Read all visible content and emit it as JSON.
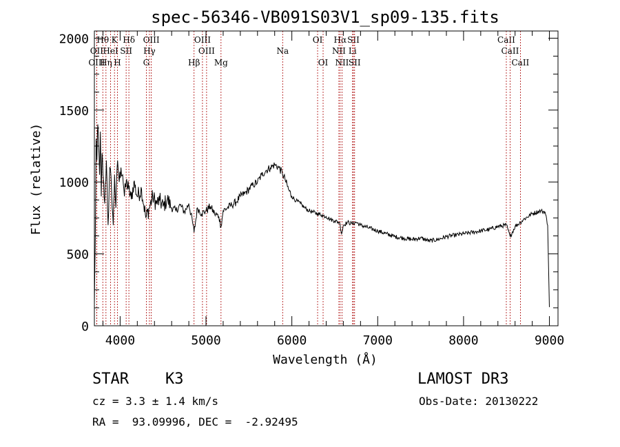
{
  "chart_data": {
    "type": "line",
    "title": "spec-56346-VB091S03V1_sp09-135.fits",
    "xlabel": "Wavelength (Å)",
    "ylabel": "Flux (relative)",
    "xlim": [
      3700,
      9100
    ],
    "ylim": [
      0,
      2050
    ],
    "x_ticks": [
      4000,
      5000,
      6000,
      7000,
      8000,
      9000
    ],
    "y_ticks": [
      0,
      500,
      1000,
      1500,
      2000
    ],
    "grid": false,
    "series": [
      {
        "name": "spectrum",
        "x": [
          3700,
          3710,
          3720,
          3730,
          3740,
          3750,
          3760,
          3770,
          3780,
          3790,
          3800,
          3820,
          3840,
          3860,
          3880,
          3900,
          3920,
          3935,
          3950,
          3970,
          3990,
          4010,
          4030,
          4050,
          4070,
          4100,
          4130,
          4160,
          4200,
          4250,
          4300,
          4340,
          4380,
          4420,
          4460,
          4500,
          4550,
          4600,
          4650,
          4700,
          4750,
          4800,
          4850,
          4861,
          4900,
          4950,
          5000,
          5050,
          5100,
          5150,
          5175,
          5200,
          5250,
          5300,
          5350,
          5400,
          5450,
          5500,
          5550,
          5600,
          5650,
          5700,
          5750,
          5800,
          5850,
          5890,
          5920,
          5960,
          6000,
          6050,
          6100,
          6150,
          6200,
          6250,
          6300,
          6350,
          6400,
          6450,
          6500,
          6550,
          6563,
          6580,
          6600,
          6650,
          6700,
          6750,
          6800,
          6900,
          7000,
          7100,
          7200,
          7300,
          7400,
          7500,
          7600,
          7700,
          7800,
          7900,
          8000,
          8100,
          8200,
          8300,
          8400,
          8500,
          8542,
          8600,
          8662,
          8700,
          8800,
          8900,
          8950,
          8980,
          9000
        ],
        "y": [
          150,
          550,
          1300,
          1150,
          1400,
          1250,
          1050,
          1350,
          900,
          1200,
          1050,
          850,
          1150,
          700,
          1100,
          950,
          700,
          1050,
          820,
          1150,
          1000,
          1100,
          1050,
          900,
          1000,
          950,
          880,
          1000,
          900,
          950,
          750,
          820,
          900,
          850,
          870,
          830,
          880,
          820,
          800,
          840,
          790,
          850,
          700,
          650,
          820,
          780,
          800,
          830,
          780,
          760,
          690,
          800,
          820,
          840,
          860,
          900,
          920,
          950,
          980,
          1000,
          1050,
          1080,
          1100,
          1120,
          1100,
          1060,
          1020,
          950,
          900,
          870,
          850,
          820,
          800,
          790,
          780,
          770,
          760,
          740,
          730,
          720,
          700,
          640,
          700,
          720,
          710,
          720,
          700,
          680,
          660,
          640,
          620,
          610,
          600,
          610,
          590,
          600,
          620,
          630,
          640,
          650,
          660,
          670,
          690,
          700,
          620,
          690,
          720,
          740,
          780,
          800,
          790,
          700,
          130
        ]
      }
    ],
    "line_markers": [
      {
        "label": "Hθ",
        "x": 3798,
        "row": 1
      },
      {
        "label": "OII",
        "x": 3727,
        "row": 2
      },
      {
        "label": "OIII",
        "x": 3727,
        "row": 3
      },
      {
        "label": "Hη",
        "x": 3835,
        "row": 3
      },
      {
        "label": "K",
        "x": 3934,
        "row": 1
      },
      {
        "label": "HeI",
        "x": 3889,
        "row": 2
      },
      {
        "label": "H",
        "x": 3969,
        "row": 3
      },
      {
        "label": "Hδ",
        "x": 4102,
        "row": 1
      },
      {
        "label": "SII",
        "x": 4070,
        "row": 2
      },
      {
        "label": "OIII",
        "x": 4363,
        "row": 1
      },
      {
        "label": "Hγ",
        "x": 4341,
        "row": 2
      },
      {
        "label": "G",
        "x": 4305,
        "row": 3
      },
      {
        "label": "Hβ",
        "x": 4861,
        "row": 3
      },
      {
        "label": "OIII",
        "x": 4959,
        "row": 1
      },
      {
        "label": "OIII",
        "x": 5007,
        "row": 2
      },
      {
        "label": "Mg",
        "x": 5175,
        "row": 3
      },
      {
        "label": "Na",
        "x": 5893,
        "row": 2
      },
      {
        "label": "OI",
        "x": 6300,
        "row": 1
      },
      {
        "label": "OI",
        "x": 6364,
        "row": 3
      },
      {
        "label": "Hα",
        "x": 6563,
        "row": 1
      },
      {
        "label": "NII",
        "x": 6548,
        "row": 2
      },
      {
        "label": "NII",
        "x": 6584,
        "row": 3
      },
      {
        "label": "SII",
        "x": 6717,
        "row": 1
      },
      {
        "label": "Li",
        "x": 6707,
        "row": 2
      },
      {
        "label": "SII",
        "x": 6731,
        "row": 3
      },
      {
        "label": "CaII",
        "x": 8498,
        "row": 1
      },
      {
        "label": "CaII",
        "x": 8542,
        "row": 2
      },
      {
        "label": "CaII",
        "x": 8662,
        "row": 3
      }
    ]
  },
  "info": {
    "object_class": "STAR",
    "subclass": "K3",
    "survey": "LAMOST DR3",
    "cz_text": "cz = 3.3 ± 1.4 km/s",
    "obs_date": "Obs-Date: 20130222",
    "radec": "RA =  93.09996, DEC =  -2.92495"
  },
  "colors": {
    "spectrum": "#000000",
    "marker_line": "#aa0000",
    "axis": "#000000"
  }
}
